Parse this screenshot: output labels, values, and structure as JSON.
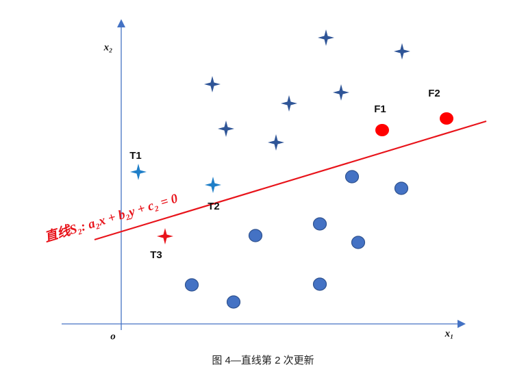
{
  "axes": {
    "y_label": "x₂",
    "x_label": "x₁",
    "origin": "o"
  },
  "points": {
    "t1": "T1",
    "t2": "T2",
    "t3": "T3",
    "f1": "F1",
    "f2": "F2"
  },
  "line_label": "直线S₂: a₂x + b₂y + c₂ = 0",
  "caption": "图 4—直线第 2 次更新"
}
